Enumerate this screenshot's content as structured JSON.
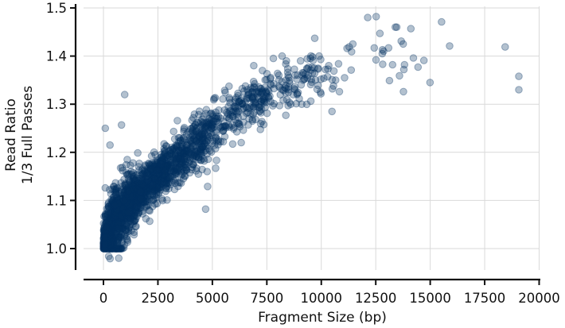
{
  "chart_data": {
    "type": "scatter",
    "xlabel": "Fragment Size (bp)",
    "ylabel_lines": [
      "Read Ratio",
      "1/3 Full Passes"
    ],
    "xlim": [
      -900,
      20000
    ],
    "ylim": [
      0.955,
      1.51
    ],
    "x_ticks": [
      0,
      2500,
      5000,
      7500,
      10000,
      12500,
      15000,
      17500,
      20000
    ],
    "x_tick_labels": [
      "0",
      "2500",
      "5000",
      "7500",
      "10000",
      "12500",
      "15000",
      "17500",
      "20000"
    ],
    "y_ticks": [
      1.0,
      1.1,
      1.2,
      1.3,
      1.4,
      1.5
    ],
    "y_tick_labels": [
      "1.0",
      "1.1",
      "1.2",
      "1.3",
      "1.4",
      "1.5"
    ],
    "grid": true,
    "marker_color": "#023260",
    "marker_alpha": 0.3,
    "dense_cloud_bins": [
      {
        "x_range": [
          0,
          900
        ],
        "y_start": 1.0,
        "y_end": 1.0,
        "sd": 0.0,
        "count": 60
      },
      {
        "x_range": [
          0,
          500
        ],
        "y_start": 1.01,
        "y_end": 1.06,
        "sd": 0.03,
        "count": 400
      },
      {
        "x_range": [
          500,
          1500
        ],
        "y_start": 1.06,
        "y_end": 1.11,
        "sd": 0.03,
        "count": 500
      },
      {
        "x_range": [
          1500,
          3000
        ],
        "y_start": 1.11,
        "y_end": 1.17,
        "sd": 0.025,
        "count": 450
      },
      {
        "x_range": [
          3000,
          5000
        ],
        "y_start": 1.17,
        "y_end": 1.25,
        "sd": 0.025,
        "count": 350
      },
      {
        "x_range": [
          5000,
          7500
        ],
        "y_start": 1.25,
        "y_end": 1.32,
        "sd": 0.025,
        "count": 200
      },
      {
        "x_range": [
          7500,
          10000
        ],
        "y_start": 1.32,
        "y_end": 1.37,
        "sd": 0.025,
        "count": 90
      }
    ],
    "points": [
      [
        85,
        1.25
      ],
      [
        975,
        1.32
      ],
      [
        830,
        1.257
      ],
      [
        300,
        1.215
      ],
      [
        85,
        1.126
      ],
      [
        240,
        0.984
      ],
      [
        700,
        0.98
      ],
      [
        305,
        0.979
      ],
      [
        4690,
        1.082
      ],
      [
        4780,
        1.129
      ],
      [
        5150,
        1.167
      ],
      [
        9960,
        1.325
      ],
      [
        10490,
        1.285
      ],
      [
        10340,
        1.38
      ],
      [
        10300,
        1.373
      ],
      [
        10190,
        1.372
      ],
      [
        10580,
        1.369
      ],
      [
        10120,
        1.354
      ],
      [
        10290,
        1.357
      ],
      [
        10500,
        1.351
      ],
      [
        10660,
        1.35
      ],
      [
        10560,
        1.338
      ],
      [
        10510,
        1.332
      ],
      [
        10830,
        1.326
      ],
      [
        11070,
        1.355
      ],
      [
        11370,
        1.371
      ],
      [
        10790,
        1.384
      ],
      [
        11180,
        1.416
      ],
      [
        11280,
        1.419
      ],
      [
        11390,
        1.409
      ],
      [
        11450,
        1.425
      ],
      [
        12130,
        1.48
      ],
      [
        12520,
        1.482
      ],
      [
        12690,
        1.447
      ],
      [
        13400,
        1.46
      ],
      [
        13460,
        1.46
      ],
      [
        14110,
        1.457
      ],
      [
        15520,
        1.471
      ],
      [
        12430,
        1.417
      ],
      [
        12810,
        1.413
      ],
      [
        12860,
        1.41
      ],
      [
        12800,
        1.405
      ],
      [
        13090,
        1.417
      ],
      [
        13670,
        1.431
      ],
      [
        13760,
        1.425
      ],
      [
        15890,
        1.421
      ],
      [
        18440,
        1.419
      ],
      [
        12510,
        1.392
      ],
      [
        12820,
        1.383
      ],
      [
        13270,
        1.382
      ],
      [
        13820,
        1.382
      ],
      [
        13790,
        1.372
      ],
      [
        14230,
        1.396
      ],
      [
        14440,
        1.377
      ],
      [
        14710,
        1.391
      ],
      [
        13590,
        1.359
      ],
      [
        13130,
        1.349
      ],
      [
        14990,
        1.345
      ],
      [
        13770,
        1.326
      ],
      [
        19070,
        1.358
      ],
      [
        19070,
        1.33
      ],
      [
        9500,
        1.395
      ],
      [
        9700,
        1.437
      ],
      [
        9400,
        1.36
      ],
      [
        9100,
        1.3
      ],
      [
        8800,
        1.33
      ],
      [
        8400,
        1.39
      ],
      [
        7800,
        1.395
      ],
      [
        8200,
        1.4
      ],
      [
        9050,
        1.39
      ],
      [
        7300,
        1.37
      ],
      [
        6900,
        1.38
      ],
      [
        8600,
        1.3
      ],
      [
        8050,
        1.36
      ],
      [
        7700,
        1.34
      ],
      [
        9900,
        1.4
      ]
    ]
  }
}
